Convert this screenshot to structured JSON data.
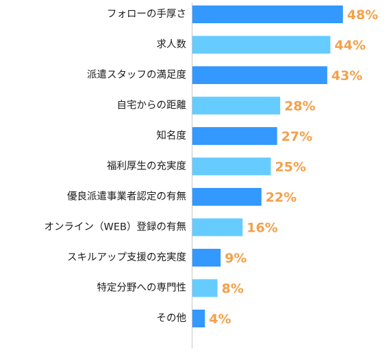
{
  "chart_data": {
    "type": "bar",
    "orientation": "horizontal",
    "categories": [
      "フォローの手厚さ",
      "求人数",
      "派遣スタッフの満足度",
      "自宅からの距離",
      "知名度",
      "福利厚生の充実度",
      "優良派遣事業者認定の有無",
      "オンライン（WEB）登録の有無",
      "スキルアップ支援の充実度",
      "特定分野への専門性",
      "その他"
    ],
    "values": [
      48,
      44,
      43,
      28,
      27,
      25,
      22,
      16,
      9,
      8,
      4
    ],
    "value_labels": [
      "48%",
      "44%",
      "43%",
      "28%",
      "27%",
      "25%",
      "22%",
      "16%",
      "9%",
      "8%",
      "4%"
    ],
    "bar_colors": [
      "#3399ff",
      "#66ccff",
      "#3399ff",
      "#66ccff",
      "#3399ff",
      "#66ccff",
      "#3399ff",
      "#66ccff",
      "#3399ff",
      "#66ccff",
      "#3399ff"
    ],
    "value_label_color": "#f4a04a",
    "xlim": [
      0,
      60
    ],
    "title": "",
    "xlabel": "",
    "ylabel": "",
    "grid": false,
    "legend": "none"
  }
}
